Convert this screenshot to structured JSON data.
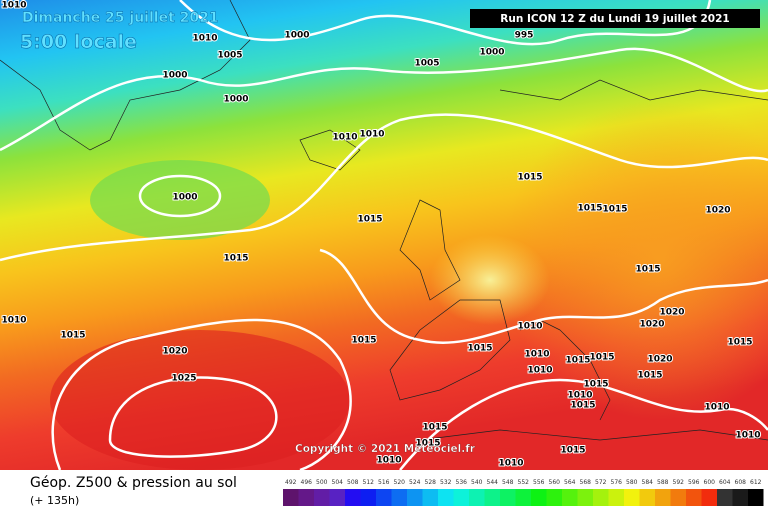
{
  "header": {
    "date": "Dimanche 25 juillet 2021",
    "time": "5:00 locale",
    "run": "Run ICON 12 Z du Lundi 19 juillet 2021"
  },
  "copyright": "Copyright © 2021 Meteociel.fr",
  "footer": {
    "title": "Géop. Z500 & pression au sol",
    "lead": "(+ 135h)",
    "scale": [
      492,
      496,
      500,
      504,
      508,
      512,
      516,
      520,
      524,
      528,
      532,
      536,
      540,
      544,
      548,
      552,
      556,
      560,
      564,
      568,
      572,
      576,
      580,
      584,
      588,
      592,
      596,
      600,
      604,
      608,
      612
    ]
  },
  "isobar_labels": [
    "1010",
    "1010",
    "1005",
    "1000",
    "995",
    "1000",
    "1005",
    "1000",
    "1000",
    "1010",
    "1010",
    "1000",
    "1015",
    "1015",
    "1015",
    "1015",
    "1020",
    "1015",
    "1015",
    "1010",
    "1015",
    "1015",
    "1010",
    "1020",
    "1020",
    "1015",
    "1020",
    "1015",
    "1010",
    "1015",
    "1015",
    "1010",
    "1015",
    "1020",
    "1015",
    "1010",
    "1015",
    "1010",
    "1025",
    "1015",
    "1015",
    "1015",
    "1010",
    "1010",
    "1010"
  ]
}
